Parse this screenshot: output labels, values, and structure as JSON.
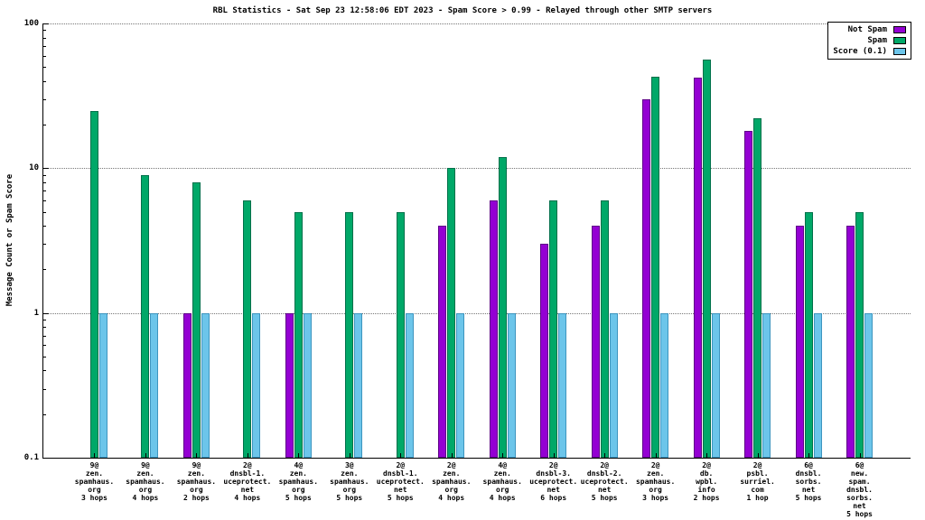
{
  "title": "RBL Statistics - Sat Sep 23 12:58:06 EDT 2023 - Spam Score > 0.99 - Relayed through other SMTP servers",
  "y_axis": {
    "label": "Message Count or Spam Score"
  },
  "legend": [
    {
      "label": "Not Spam",
      "color": "#9400d3"
    },
    {
      "label": "Spam",
      "color": "#00a868"
    },
    {
      "label": "Score (0.1)",
      "color": "#6cc5ea"
    }
  ],
  "chart_data": {
    "type": "bar",
    "scale": "log",
    "ylim": [
      0.1,
      100
    ],
    "grid": true,
    "legend_position": "top-right",
    "title": "RBL Statistics - Sat Sep 23 12:58:06 EDT 2023 - Spam Score > 0.99 - Relayed through other SMTP servers",
    "ylabel": "Message Count or Spam Score",
    "y_ticks": [
      {
        "value": 0.1,
        "label": "0.1"
      },
      {
        "value": 1,
        "label": "1"
      },
      {
        "value": 10,
        "label": "10"
      },
      {
        "value": 100,
        "label": "100"
      }
    ],
    "categories": [
      [
        "9@",
        "zen.",
        "spamhaus.",
        "org",
        "3 hops"
      ],
      [
        "9@",
        "zen.",
        "spamhaus.",
        "org",
        "4 hops"
      ],
      [
        "9@",
        "zen.",
        "spamhaus.",
        "org",
        "2 hops"
      ],
      [
        "2@",
        "dnsbl-1.",
        "uceprotect.",
        "net",
        "4 hops"
      ],
      [
        "4@",
        "zen.",
        "spamhaus.",
        "org",
        "5 hops"
      ],
      [
        "3@",
        "zen.",
        "spamhaus.",
        "org",
        "5 hops"
      ],
      [
        "2@",
        "dnsbl-1.",
        "uceprotect.",
        "net",
        "5 hops"
      ],
      [
        "2@",
        "zen.",
        "spamhaus.",
        "org",
        "4 hops"
      ],
      [
        "4@",
        "zen.",
        "spamhaus.",
        "org",
        "4 hops"
      ],
      [
        "2@",
        "dnsbl-3.",
        "uceprotect.",
        "net",
        "6 hops"
      ],
      [
        "2@",
        "dnsbl-2.",
        "uceprotect.",
        "net",
        "5 hops"
      ],
      [
        "2@",
        "zen.",
        "spamhaus.",
        "org",
        "3 hops"
      ],
      [
        "2@",
        "db.",
        "wpbl.",
        "info",
        "2 hops"
      ],
      [
        "2@",
        "psbl.",
        "surriel.",
        "com",
        "1 hop"
      ],
      [
        "6@",
        "dnsbl.",
        "sorbs.",
        "net",
        "5 hops"
      ],
      [
        "6@",
        "new.",
        "spam.",
        "dnsbl.",
        "sorbs.",
        "net",
        "5 hops"
      ]
    ],
    "series": [
      {
        "name": "Not Spam",
        "color": "#9400d3",
        "border": "#5e0087",
        "values": [
          null,
          null,
          1,
          null,
          1,
          null,
          null,
          4,
          6,
          3,
          4,
          30,
          42,
          18,
          4,
          4
        ]
      },
      {
        "name": "Spam",
        "color": "#00a868",
        "border": "#00704a",
        "values": [
          25,
          9,
          8,
          6,
          5,
          5,
          5,
          10,
          12,
          6,
          6,
          43,
          56,
          22,
          5,
          5
        ]
      },
      {
        "name": "Score (0.1)",
        "color": "#6cc5ea",
        "border": "#3e95bf",
        "values": [
          1,
          1,
          1,
          1,
          1,
          1,
          1,
          1,
          1,
          1,
          1,
          1,
          1,
          1,
          1,
          1
        ]
      }
    ]
  }
}
